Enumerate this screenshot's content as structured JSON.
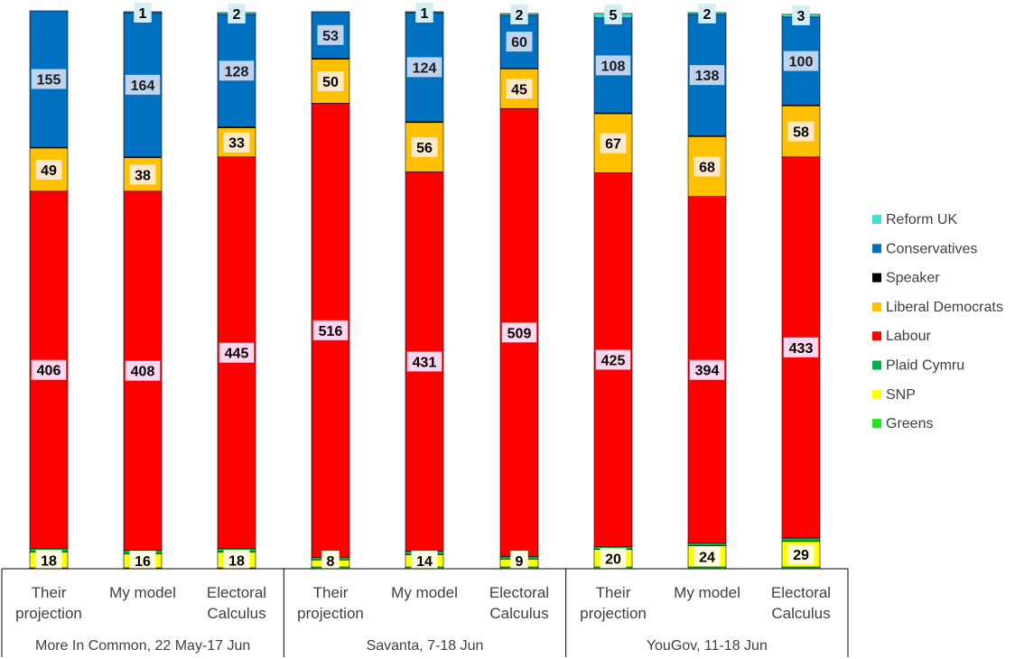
{
  "chart_data": {
    "type": "bar",
    "stacked": true,
    "title": "",
    "xlabel": "",
    "ylabel": "",
    "ylim": [
      0,
      650
    ],
    "grid": false,
    "legend_position": "right",
    "groups": [
      {
        "label": "More In Common, 22 May-17 Jun",
        "categories": [
          "Their projection",
          "My model",
          "Electoral Calculus"
        ]
      },
      {
        "label": "Savanta, 7-18 Jun",
        "categories": [
          "Their projection",
          "My model",
          "Electoral Calculus"
        ]
      },
      {
        "label": "YouGov, 11-18 Jun",
        "categories": [
          "Their projection",
          "My model",
          "Electoral Calculus"
        ]
      }
    ],
    "categories": [
      "Their projection",
      "My model",
      "Electoral Calculus",
      "Their projection",
      "My model",
      "Electoral Calculus",
      "Their projection",
      "My model",
      "Electoral Calculus"
    ],
    "series": [
      {
        "name": "Greens",
        "color": "#1ae81a",
        "values": [
          1,
          1,
          1,
          2,
          2,
          2,
          2,
          2,
          2
        ]
      },
      {
        "name": "SNP",
        "color": "#ffff00",
        "values": [
          18,
          16,
          18,
          8,
          14,
          9,
          20,
          24,
          29
        ]
      },
      {
        "name": "Plaid Cymru",
        "color": "#00b050",
        "values": [
          4,
          4,
          4,
          3,
          4,
          3,
          3,
          3,
          4
        ]
      },
      {
        "name": "Labour",
        "color": "#ff0000",
        "values": [
          406,
          408,
          445,
          516,
          431,
          509,
          425,
          394,
          433
        ]
      },
      {
        "name": "Liberal Democrats",
        "color": "#ffc000",
        "values": [
          49,
          38,
          33,
          50,
          56,
          45,
          67,
          68,
          58
        ]
      },
      {
        "name": "Speaker",
        "color": "#000000",
        "values": [
          1,
          1,
          1,
          1,
          1,
          1,
          1,
          1,
          1
        ]
      },
      {
        "name": "Conservatives",
        "color": "#0070c0",
        "values": [
          155,
          164,
          128,
          53,
          124,
          60,
          108,
          138,
          100
        ]
      },
      {
        "name": "Reform UK",
        "color": "#40e0d0",
        "values": [
          0,
          1,
          2,
          0,
          1,
          2,
          5,
          2,
          3
        ]
      }
    ],
    "data_labels": {
      "SNP": [
        18,
        16,
        18,
        8,
        14,
        9,
        20,
        24,
        29
      ],
      "Labour": [
        406,
        408,
        445,
        516,
        431,
        509,
        425,
        394,
        433
      ],
      "Liberal Democrats": [
        49,
        38,
        33,
        50,
        56,
        45,
        67,
        68,
        58
      ],
      "Conservatives": [
        155,
        164,
        128,
        53,
        124,
        60,
        108,
        138,
        100
      ],
      "Reform UK": [
        null,
        1,
        2,
        null,
        1,
        2,
        5,
        2,
        3
      ]
    },
    "legend": [
      "Reform UK",
      "Conservatives",
      "Speaker",
      "Liberal Democrats",
      "Labour",
      "Plaid Cymru",
      "SNP",
      "Greens"
    ]
  }
}
